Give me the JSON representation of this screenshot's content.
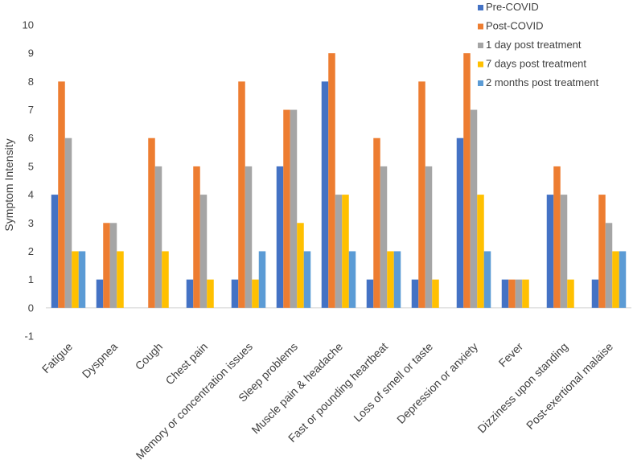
{
  "chart_data": {
    "type": "bar",
    "title": "",
    "xlabel": "",
    "ylabel": "Symptom Intensity",
    "ylim": [
      -1,
      10
    ],
    "yticks": [
      -1,
      0,
      1,
      2,
      3,
      4,
      5,
      6,
      7,
      8,
      9,
      10
    ],
    "grid": false,
    "legend_position": "top-right",
    "categories": [
      "Fatigue",
      "Dyspnea",
      "Cough",
      "Chest pain",
      "Memory or concentration issues",
      "Sleep problems",
      "Muscle pain & headache",
      "Fast or pounding heartbeat",
      "Loss of smell or taste",
      "Depression or anxiety",
      "Fever",
      "Dizziness upon standing",
      "Post-exertional malaise"
    ],
    "series": [
      {
        "name": "Pre-COVID",
        "color": "#4472c4",
        "values": [
          4,
          1,
          0,
          1,
          1,
          5,
          8,
          1,
          1,
          6,
          1,
          4,
          1
        ]
      },
      {
        "name": "Post-COVID",
        "color": "#ed7d31",
        "values": [
          8,
          3,
          6,
          5,
          8,
          7,
          9,
          6,
          8,
          9,
          1,
          5,
          4
        ]
      },
      {
        "name": "1 day post treatment",
        "color": "#a5a5a5",
        "values": [
          6,
          3,
          5,
          4,
          5,
          7,
          4,
          5,
          5,
          7,
          1,
          4,
          3
        ]
      },
      {
        "name": "7 days post treatment",
        "color": "#ffc000",
        "values": [
          2,
          2,
          2,
          1,
          1,
          3,
          4,
          2,
          1,
          4,
          1,
          1,
          2
        ]
      },
      {
        "name": "2 months post treatment",
        "color": "#5b9bd5",
        "values": [
          2,
          0,
          0,
          0,
          2,
          2,
          2,
          2,
          0,
          2,
          0,
          0,
          2
        ]
      }
    ]
  }
}
